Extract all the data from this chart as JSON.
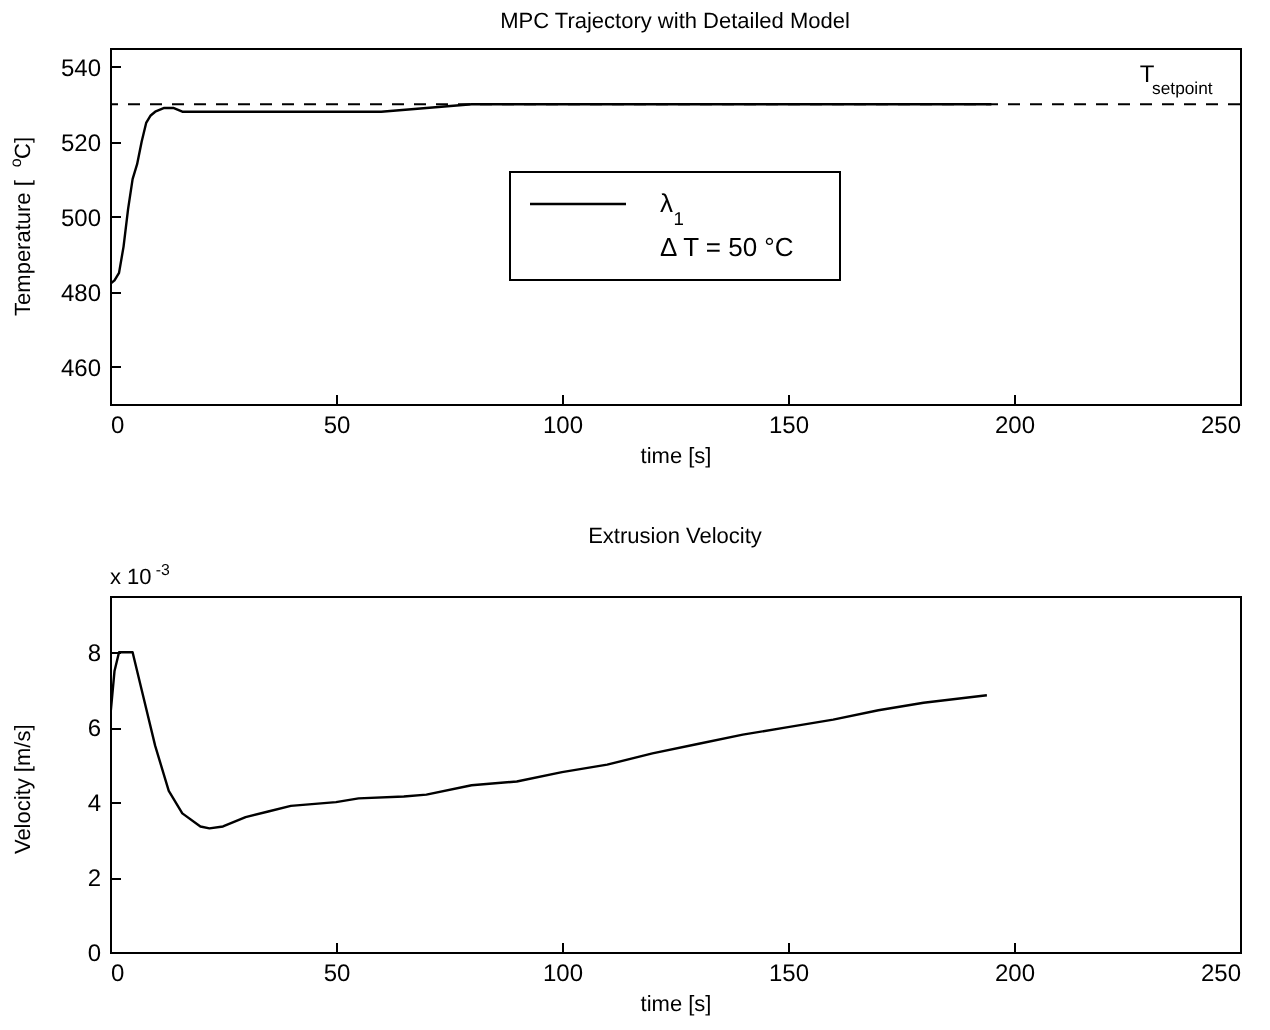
{
  "chart_data": [
    {
      "type": "line",
      "title": "MPC Trajectory with Detailed Model",
      "xlabel": "time [s]",
      "ylabel": "Temperature [$^{o}$C]",
      "legend_title": "Δ T = 50 °C",
      "legend": "center",
      "xlim": [
        0,
        250
      ],
      "xticks": [
        0,
        50,
        100,
        150,
        200,
        250
      ],
      "ylim": [
        450,
        545
      ],
      "yticks": [
        460,
        480,
        500,
        520,
        540
      ],
      "series": [
        {
          "name": "λ$_{1}$",
          "color": "#000000",
          "x": [
            0,
            1,
            2,
            3,
            4,
            5,
            6,
            7,
            8,
            9,
            10,
            12,
            14,
            16,
            20,
            30,
            40,
            50,
            60,
            70,
            80,
            100,
            120,
            150,
            195
          ],
          "values": [
            482,
            483,
            485,
            492,
            502,
            510,
            514,
            520,
            525,
            527,
            528,
            529,
            529,
            528,
            528,
            528,
            528,
            528,
            528,
            529,
            530,
            530,
            530,
            530,
            530
          ]
        }
      ],
      "ref_lines": [
        {
          "axis": "y",
          "value": 530,
          "label": "T$_{setpoint}$",
          "line_style": "dashed",
          "color": "#000000"
        }
      ]
    },
    {
      "type": "line",
      "title": "Extrusion Velocity",
      "xlabel": "time [s]",
      "ylabel": "Velocity [m/s]",
      "annotations": [
        "x 10$^{-3}$"
      ],
      "xlim": [
        0,
        250
      ],
      "xticks": [
        0,
        50,
        100,
        150,
        200,
        250
      ],
      "ylim": [
        0,
        9.5
      ],
      "yticks": [
        0,
        2,
        4,
        6,
        8
      ],
      "series": [
        {
          "color": "#000000",
          "x": [
            0,
            1,
            2,
            5,
            7,
            10,
            13,
            16,
            20,
            22,
            25,
            30,
            35,
            40,
            50,
            55,
            65,
            70,
            80,
            90,
            100,
            110,
            120,
            130,
            140,
            150,
            160,
            170,
            180,
            194
          ],
          "values": [
            6.2,
            7.5,
            8,
            8,
            7,
            5.5,
            4.3,
            3.7,
            3.35,
            3.3,
            3.35,
            3.6,
            3.75,
            3.9,
            4,
            4.1,
            4.15,
            4.2,
            4.45,
            4.55,
            4.8,
            5,
            5.3,
            5.55,
            5.8,
            6,
            6.2,
            6.45,
            6.65,
            6.85
          ]
        }
      ]
    }
  ]
}
